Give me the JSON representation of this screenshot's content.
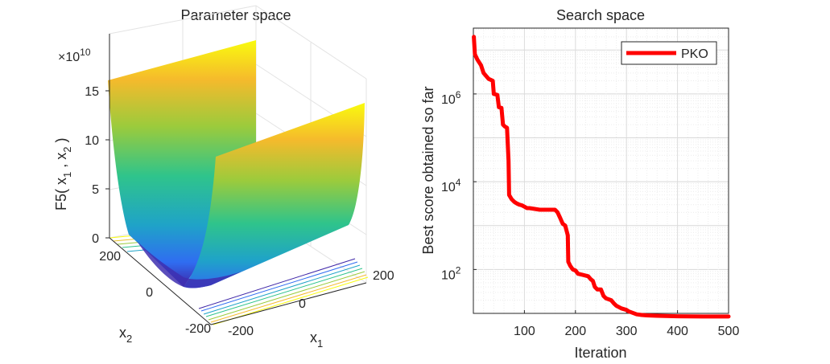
{
  "chart_data": [
    {
      "type": "surface",
      "title": "Parameter space",
      "xlabel": "x",
      "xlabel_sub": "1",
      "ylabel": "x",
      "ylabel_sub": "2",
      "zlabel_parts": [
        "F5( x",
        "1",
        " , x",
        "2",
        " )"
      ],
      "z_exponent_prefix": "×10",
      "z_exponent_power": "10",
      "x_ticks": [
        "-200",
        "0",
        "200"
      ],
      "y_ticks": [
        "-200",
        "0",
        "200"
      ],
      "z_ticks": [
        "0",
        "5",
        "10",
        "15"
      ],
      "xlim": [
        -200,
        200
      ],
      "ylim": [
        -200,
        200
      ],
      "zlim_scaled": [
        0,
        16
      ],
      "colormap": [
        "#3e26a8",
        "#2f6df1",
        "#1fa3c8",
        "#2fc48b",
        "#9bcb3c",
        "#f5ba2c",
        "#f9fb0e"
      ],
      "surface_profile": "F5 grows quadratically away from x2 ≈ 0, flat along x1"
    },
    {
      "type": "line",
      "title": "Search space",
      "xlabel": "Iteration",
      "ylabel": "Best score obtained so far",
      "y_scale": "log",
      "xlim": [
        0,
        500
      ],
      "ylim": [
        10,
        31622776
      ],
      "x_ticks": [
        "100",
        "200",
        "300",
        "400",
        "500"
      ],
      "y_ticks": [
        {
          "base": "10",
          "exp": "2",
          "value": 100
        },
        {
          "base": "10",
          "exp": "4",
          "value": 10000
        },
        {
          "base": "10",
          "exp": "6",
          "value": 1000000
        }
      ],
      "legend": "top-right",
      "series": [
        {
          "name": "PKO",
          "color": "#ff0000",
          "points": [
            [
              1,
              20000000
            ],
            [
              3,
              8000000
            ],
            [
              8,
              6000000
            ],
            [
              15,
              4500000
            ],
            [
              20,
              3000000
            ],
            [
              30,
              2200000
            ],
            [
              38,
              2000000
            ],
            [
              40,
              1000000
            ],
            [
              47,
              950000
            ],
            [
              50,
              500000
            ],
            [
              55,
              480000
            ],
            [
              58,
              200000
            ],
            [
              62,
              180000
            ],
            [
              66,
              170000
            ],
            [
              69,
              30000
            ],
            [
              70,
              5000
            ],
            [
              75,
              4000
            ],
            [
              80,
              3500
            ],
            [
              85,
              3200
            ],
            [
              90,
              3000
            ],
            [
              95,
              2900
            ],
            [
              100,
              2700
            ],
            [
              105,
              2500
            ],
            [
              110,
              2500
            ],
            [
              120,
              2400
            ],
            [
              130,
              2300
            ],
            [
              140,
              2300
            ],
            [
              150,
              2300
            ],
            [
              160,
              2300
            ],
            [
              165,
              2000
            ],
            [
              170,
              1500
            ],
            [
              175,
              1100
            ],
            [
              180,
              1000
            ],
            [
              185,
              600
            ],
            [
              186,
              150
            ],
            [
              190,
              120
            ],
            [
              195,
              100
            ],
            [
              200,
              95
            ],
            [
              205,
              80
            ],
            [
              215,
              75
            ],
            [
              225,
              70
            ],
            [
              230,
              60
            ],
            [
              234,
              55
            ],
            [
              238,
              40
            ],
            [
              243,
              35
            ],
            [
              250,
              35
            ],
            [
              255,
              25
            ],
            [
              260,
              22
            ],
            [
              270,
              20
            ],
            [
              275,
              17
            ],
            [
              280,
              15
            ],
            [
              290,
              13
            ],
            [
              300,
              12
            ],
            [
              305,
              11
            ],
            [
              310,
              10.5
            ],
            [
              320,
              9.5
            ],
            [
              330,
              9.2
            ],
            [
              340,
              9
            ],
            [
              360,
              8.8
            ],
            [
              400,
              8.6
            ],
            [
              450,
              8.5
            ],
            [
              500,
              8.5
            ]
          ]
        }
      ]
    }
  ]
}
